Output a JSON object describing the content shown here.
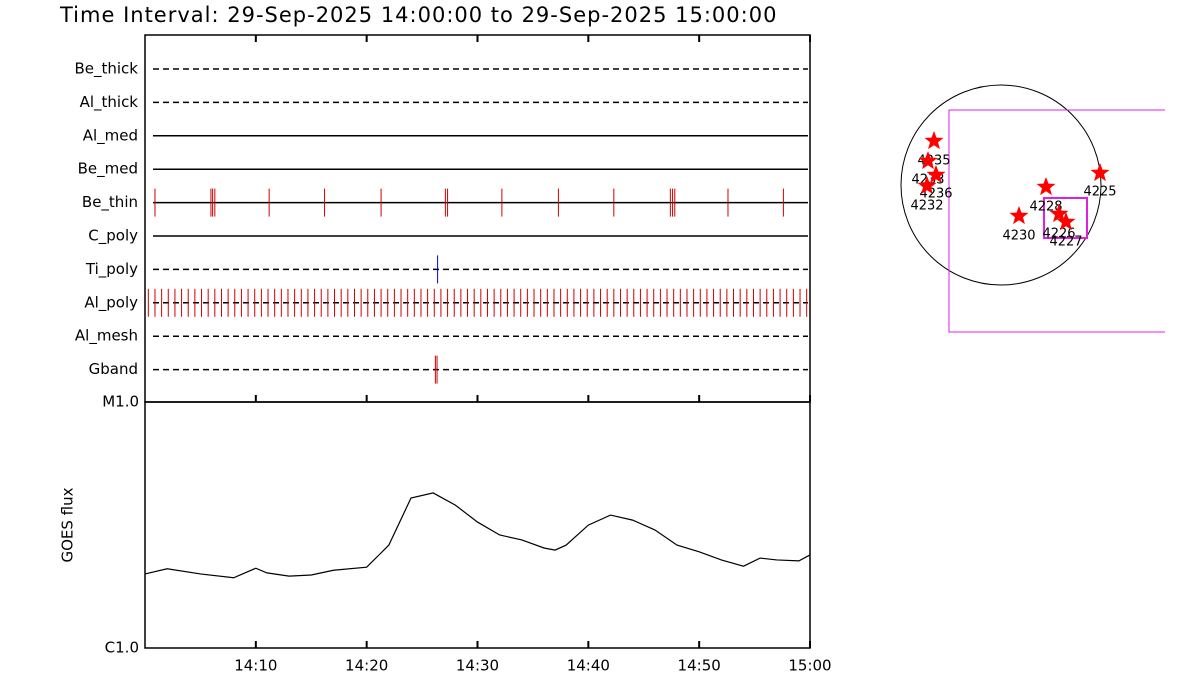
{
  "title": "Time Interval: 29-Sep-2025 14:00:00 to 29-Sep-2025 15:00:00",
  "chart_data": [
    {
      "type": "event",
      "xlim": [
        0,
        60
      ],
      "channels": [
        {
          "name": "Be_thick",
          "style": "dashed",
          "color": "#d00000",
          "events": []
        },
        {
          "name": "Al_thick",
          "style": "dashed",
          "color": "#d00000",
          "events": []
        },
        {
          "name": "Al_med",
          "style": "solid",
          "color": "#d00000",
          "events": []
        },
        {
          "name": "Be_med",
          "style": "solid",
          "color": "#d00000",
          "events": []
        },
        {
          "name": "Be_thin",
          "style": "solid",
          "color": "#d00000",
          "events": [
            0.9,
            5.95,
            6.1,
            6.3,
            11.2,
            16.2,
            21.3,
            27.1,
            27.3,
            32.2,
            37.3,
            42.3,
            47.4,
            47.6,
            47.8,
            52.6,
            57.6
          ]
        },
        {
          "name": "C_poly",
          "style": "solid",
          "color": "#d00000",
          "events": []
        },
        {
          "name": "Ti_poly",
          "style": "dashed",
          "color": "#0000e0",
          "events": [
            26.4
          ]
        },
        {
          "name": "Al_poly",
          "style": "dashed",
          "color": "#d00000",
          "events": [
            0.3,
            0.9,
            1.5,
            2.1,
            2.7,
            3.3,
            3.9,
            4.5,
            5.1,
            5.7,
            6.3,
            6.9,
            7.5,
            8.1,
            8.7,
            9.3,
            9.9,
            10.5,
            11.1,
            11.7,
            12.3,
            12.9,
            13.5,
            14.1,
            14.7,
            15.3,
            15.9,
            16.5,
            17.1,
            17.7,
            18.3,
            18.9,
            19.5,
            20.1,
            20.7,
            21.3,
            21.9,
            22.5,
            23.1,
            23.7,
            24.3,
            24.9,
            25.5,
            26.1,
            26.7,
            27.3,
            27.9,
            28.5,
            29.1,
            29.7,
            30.3,
            30.9,
            31.5,
            32.1,
            32.7,
            33.3,
            33.9,
            34.5,
            35.1,
            35.7,
            36.3,
            36.9,
            37.5,
            38.1,
            38.7,
            39.3,
            39.9,
            40.5,
            41.1,
            41.7,
            42.3,
            42.9,
            43.5,
            44.1,
            44.7,
            45.3,
            45.9,
            46.5,
            47.1,
            47.7,
            48.3,
            48.9,
            49.5,
            50.1,
            50.7,
            51.3,
            51.9,
            52.5,
            53.1,
            53.7,
            54.3,
            54.9,
            55.5,
            56.1,
            56.7,
            57.3,
            57.9,
            58.5,
            59.1,
            59.7
          ]
        },
        {
          "name": "Al_mesh",
          "style": "dashed",
          "color": "#d00000",
          "events": []
        },
        {
          "name": "Gband",
          "style": "dashed",
          "color": "#d00000",
          "events": [
            26.2,
            26.35
          ]
        }
      ]
    },
    {
      "type": "line",
      "ylabel": "GOES flux",
      "log": true,
      "color": "#000000",
      "xlim": [
        0,
        60
      ],
      "xticks": [
        {
          "value": 10,
          "label": "14:10"
        },
        {
          "value": 20,
          "label": "14:20"
        },
        {
          "value": 30,
          "label": "14:30"
        },
        {
          "value": 40,
          "label": "14:40"
        },
        {
          "value": 50,
          "label": "14:50"
        },
        {
          "value": 60,
          "label": "15:00"
        }
      ],
      "ylim": [
        1e-06,
        1e-05
      ],
      "yticks": [
        {
          "value": 1e-06,
          "label": "C1.0"
        },
        {
          "value": 1e-05,
          "label": "M1.0"
        }
      ],
      "x": [
        0,
        2,
        5,
        8,
        10,
        11,
        13,
        15,
        17,
        20,
        22,
        24,
        26,
        28,
        30,
        32,
        34,
        36,
        37,
        38,
        40,
        42,
        44,
        46,
        48,
        50,
        52,
        54,
        55.5,
        57,
        59,
        60
      ],
      "values": [
        2e-06,
        2.1e-06,
        2e-06,
        1.93e-06,
        2.11e-06,
        2.02e-06,
        1.96e-06,
        1.98e-06,
        2.07e-06,
        2.13e-06,
        2.62e-06,
        4.07e-06,
        4.27e-06,
        3.81e-06,
        3.25e-06,
        2.88e-06,
        2.75e-06,
        2.55e-06,
        2.5e-06,
        2.62e-06,
        3.16e-06,
        3.47e-06,
        3.31e-06,
        3.02e-06,
        2.62e-06,
        2.46e-06,
        2.28e-06,
        2.15e-06,
        2.32e-06,
        2.28e-06,
        2.26e-06,
        2.39e-06
      ]
    }
  ],
  "map": {
    "regions": [
      "4235",
      "4233",
      "4236",
      "4232",
      "4225",
      "4228",
      "4230",
      "4226",
      "4227"
    ]
  }
}
